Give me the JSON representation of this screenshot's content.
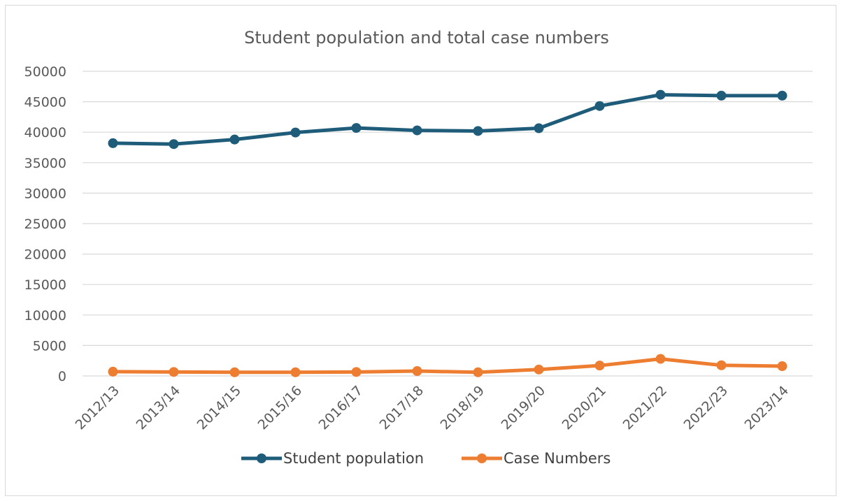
{
  "chart_data": {
    "type": "line",
    "title": "Student population and total case numbers",
    "xlabel": "",
    "ylabel": "",
    "categories": [
      "2012/13",
      "2013/14",
      "2014/15",
      "2015/16",
      "2016/17",
      "2017/18",
      "2018/19",
      "2019/20",
      "2020/21",
      "2021/22",
      "2022/23",
      "2023/14"
    ],
    "ylim": [
      0,
      50000
    ],
    "yticks": [
      "0",
      "5000",
      "10000",
      "15000",
      "20000",
      "25000",
      "30000",
      "35000",
      "40000",
      "45000",
      "50000"
    ],
    "grid": true,
    "legend_position": "bottom",
    "series": [
      {
        "name": "Student population",
        "color": "#1f5c7a",
        "values": [
          38200,
          38050,
          38800,
          39950,
          40700,
          40300,
          40200,
          40650,
          44300,
          46150,
          46000,
          46000
        ]
      },
      {
        "name": "Case Numbers",
        "color": "#ed7d31",
        "values": [
          700,
          650,
          600,
          600,
          650,
          800,
          600,
          1050,
          1700,
          2800,
          1750,
          1600
        ]
      }
    ]
  }
}
